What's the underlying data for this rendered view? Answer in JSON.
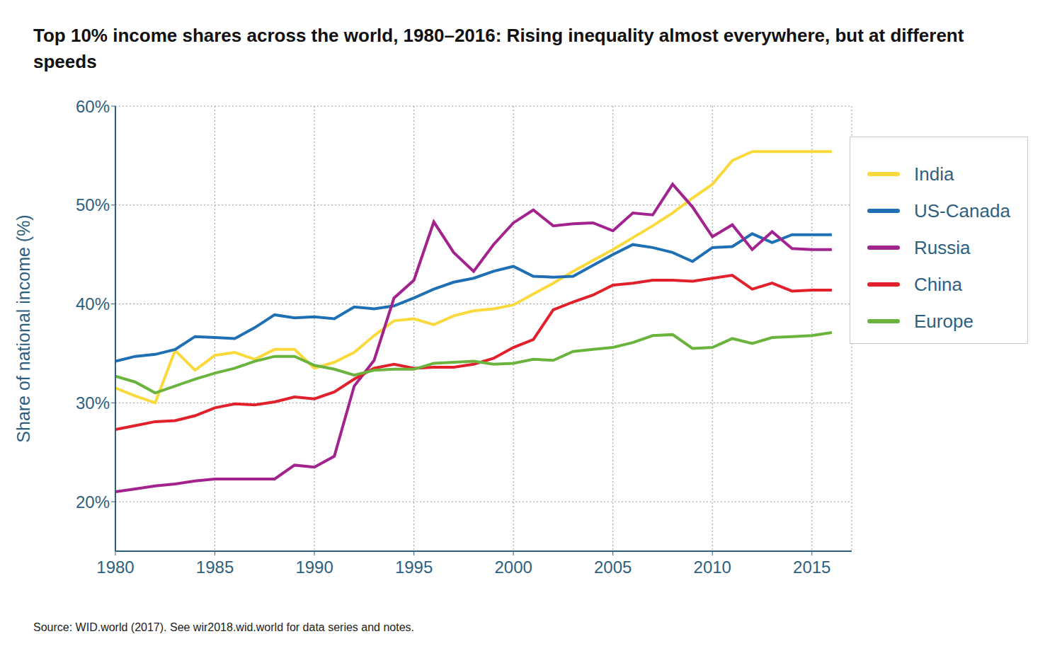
{
  "chart_data": {
    "type": "line",
    "title": "Top 10% income shares across the world, 1980–2016: Rising inequality almost everywhere, but at different speeds",
    "y_label": "Share of national income (%)",
    "source": "Source: WID.world (2017). See wir2018.wid.world for data series and notes.",
    "x": [
      1980,
      1981,
      1982,
      1983,
      1984,
      1985,
      1986,
      1987,
      1988,
      1989,
      1990,
      1991,
      1992,
      1993,
      1994,
      1995,
      1996,
      1997,
      1998,
      1999,
      2000,
      2001,
      2002,
      2003,
      2004,
      2005,
      2006,
      2007,
      2008,
      2009,
      2010,
      2011,
      2012,
      2013,
      2014,
      2015,
      2016
    ],
    "xlim": [
      1980,
      2017
    ],
    "xticks": [
      1980,
      1985,
      1990,
      1995,
      2000,
      2005,
      2010,
      2015
    ],
    "ylim": [
      15,
      60
    ],
    "yticks": [
      {
        "value": 20,
        "label": "20%"
      },
      {
        "value": 30,
        "label": "30%"
      },
      {
        "value": 40,
        "label": "40%"
      },
      {
        "value": 50,
        "label": "50%"
      },
      {
        "value": 60,
        "label": "60%"
      }
    ],
    "grid": true,
    "legend": "right",
    "series": [
      {
        "name": "India",
        "color": "#f9d93c",
        "values": [
          31.5,
          30.7,
          30.0,
          35.3,
          33.3,
          34.8,
          35.1,
          34.4,
          35.4,
          35.4,
          33.5,
          34.1,
          35.1,
          36.8,
          38.3,
          38.5,
          37.9,
          38.8,
          39.3,
          39.5,
          39.9,
          41.0,
          42.1,
          43.3,
          44.4,
          45.5,
          46.7,
          47.9,
          49.2,
          50.7,
          52.1,
          54.5,
          55.4,
          55.4,
          55.4,
          55.4,
          55.4
        ]
      },
      {
        "name": "US-Canada",
        "color": "#1f6fb4",
        "values": [
          34.2,
          34.7,
          34.9,
          35.4,
          36.7,
          36.6,
          36.5,
          37.6,
          38.9,
          38.6,
          38.7,
          38.5,
          39.7,
          39.5,
          39.8,
          40.6,
          41.5,
          42.2,
          42.6,
          43.3,
          43.8,
          42.8,
          42.7,
          42.8,
          43.9,
          45.0,
          46.0,
          45.7,
          45.2,
          44.3,
          45.7,
          45.8,
          47.1,
          46.2,
          47.0,
          47.0,
          47.0
        ]
      },
      {
        "name": "Russia",
        "color": "#a3238e",
        "values": [
          21.0,
          21.3,
          21.6,
          21.8,
          22.1,
          22.3,
          22.3,
          22.3,
          22.3,
          23.7,
          23.5,
          24.6,
          31.7,
          34.3,
          40.6,
          42.4,
          48.3,
          45.2,
          43.3,
          46.0,
          48.2,
          49.5,
          47.9,
          48.1,
          48.2,
          47.4,
          49.2,
          49.0,
          52.1,
          49.8,
          46.8,
          48.0,
          45.5,
          47.3,
          45.6,
          45.5,
          45.5
        ]
      },
      {
        "name": "China",
        "color": "#e2202b",
        "values": [
          27.3,
          27.7,
          28.1,
          28.2,
          28.7,
          29.5,
          29.9,
          29.8,
          30.1,
          30.6,
          30.4,
          31.1,
          32.4,
          33.5,
          33.9,
          33.5,
          33.6,
          33.6,
          33.9,
          34.5,
          35.6,
          36.4,
          39.4,
          40.2,
          40.9,
          41.9,
          42.1,
          42.4,
          42.4,
          42.3,
          42.6,
          42.9,
          41.5,
          42.1,
          41.3,
          41.4,
          41.4
        ]
      },
      {
        "name": "Europe",
        "color": "#6ab43e",
        "values": [
          32.7,
          32.1,
          31.0,
          31.7,
          32.4,
          33.0,
          33.5,
          34.2,
          34.7,
          34.7,
          33.8,
          33.4,
          32.8,
          33.3,
          33.4,
          33.4,
          34.0,
          34.1,
          34.2,
          33.9,
          34.0,
          34.4,
          34.3,
          35.2,
          35.4,
          35.6,
          36.1,
          36.8,
          36.9,
          35.5,
          35.6,
          36.5,
          36.0,
          36.6,
          36.7,
          36.8,
          37.1
        ]
      }
    ]
  }
}
